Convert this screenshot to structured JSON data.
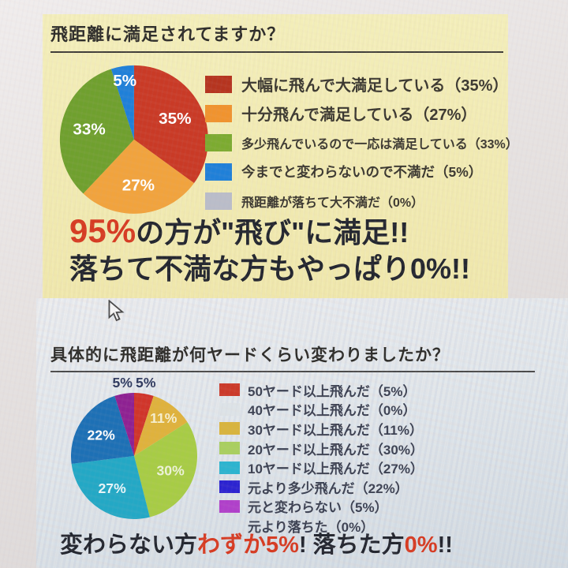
{
  "colors": {
    "accent_red": "#d63b22",
    "navy_text": "#23262f",
    "panel_yellow": "#f3eeb9",
    "lower_bg": "#dfe6eb",
    "title_text": "#2e2d2a",
    "legend_text_1": "#3b3830",
    "legend_text_2": "#3c4152"
  },
  "icons": {
    "cursor": "mouse-pointer-arrow"
  },
  "page": {
    "section1": {
      "title": "飛距離に満足されてますか？",
      "headline": {
        "accent": "95%",
        "line1_rest": "の方が\"飛び\"に満足!!",
        "line2": "落ちて不満な方もやっぱり0%!!"
      }
    },
    "section2": {
      "title": "具体的に飛距離が何ヤードくらい変わりましたか？",
      "footline": {
        "part1": "変わらない方",
        "part2": "わずか5%",
        "part3": "! 落ちた方",
        "part4": "0%",
        "part5": "!!"
      }
    }
  },
  "chart_data": [
    {
      "type": "pie",
      "title": "飛距離に満足されてますか？",
      "start_angle_deg": 0,
      "direction": "clockwise",
      "legend_position": "right",
      "slices": [
        {
          "label": "大幅に飛んで大満足している",
          "value": 35,
          "pct": "35%",
          "color": "#c93a26",
          "swatch": "#b5341f",
          "legend": "大幅に飛んで大満足している（35%）",
          "label_pos": "inside"
        },
        {
          "label": "十分飛んで満足している",
          "value": 27,
          "pct": "27%",
          "color": "#f1a33d",
          "swatch": "#f0932e",
          "legend": "十分飛んで満足している（27%）",
          "label_pos": "inside"
        },
        {
          "label": "多少飛んでいるので一応は満足している",
          "value": 33,
          "pct": "33%",
          "color": "#6fa02e",
          "swatch": "#7cab30",
          "legend": "多少飛んでいるので一応は満足している（33%）",
          "label_pos": "inside"
        },
        {
          "label": "今までと変わらないので不満だ",
          "value": 5,
          "pct": "5%",
          "color": "#1f80d8",
          "swatch": "#1f80d8",
          "legend": "今までと変わらないので不満だ（5%）",
          "label_pos": "inside",
          "label_r": 0.8
        },
        {
          "label": "飛距離が落ちて大不満だ",
          "value": 0,
          "pct": "0%",
          "color": "#babdc9",
          "swatch": "#babdc9",
          "legend": "飛距離が落ちて大不満だ（0%）"
        }
      ]
    },
    {
      "type": "pie",
      "title": "具体的に飛距離が何ヤードくらい変わりましたか？",
      "start_angle_deg": 0,
      "direction": "clockwise",
      "legend_position": "right",
      "slices": [
        {
          "label": "50ヤード以上飛んだ",
          "value": 5,
          "pct": "5%",
          "color": "#d0352a",
          "swatch": "#cb3a2a",
          "legend": "50ヤード以上飛んだ（5%）",
          "label_pos": "outside",
          "label_color": "#2f3a5f"
        },
        {
          "label": "40ヤード以上飛んだ",
          "value": 0,
          "pct": "0%",
          "color": "#dde3e7",
          "swatch": "#dde3e7",
          "legend": "40ヤード以上飛んだ（0%）"
        },
        {
          "label": "30ヤード以上飛んだ",
          "value": 11,
          "pct": "11%",
          "color": "#dfb23c",
          "swatch": "#d8b43e",
          "legend": "30ヤード以上飛んだ（11%）",
          "label_pos": "inside",
          "label_r": 0.76,
          "label_color": "#f6efcd"
        },
        {
          "label": "20ヤード以上飛んだ",
          "value": 30,
          "pct": "30%",
          "color": "#a7cc45",
          "swatch": "#a9cf5f",
          "legend": "20ヤード以上飛んだ（30%）",
          "label_pos": "inside",
          "label_color": "#edf3d8"
        },
        {
          "label": "10ヤード以上飛んだ",
          "value": 27,
          "pct": "27%",
          "color": "#23a8c5",
          "swatch": "#2cb4cf",
          "legend": "10ヤード以上飛んだ（27%）",
          "label_pos": "inside",
          "label_color": "#e8f6f9"
        },
        {
          "label": "元より多少飛んだ",
          "value": 22,
          "pct": "22%",
          "color": "#1d70b5",
          "swatch": "#2c23d0",
          "legend": "元より多少飛んだ（22%）",
          "label_pos": "inside",
          "label_color": "#ffffff"
        },
        {
          "label": "元と変わらない",
          "value": 5,
          "pct": "5%",
          "color": "#8e2192",
          "swatch": "#b040ca",
          "legend": "元と変わらない（5%）",
          "label_pos": "outside",
          "label_color": "#2f3a5f"
        },
        {
          "label": "元より落ちた",
          "value": 0,
          "pct": "0%",
          "color": "#ffffff",
          "swatch": "transparent",
          "legend": "元より落ちた（0%）"
        }
      ]
    }
  ]
}
